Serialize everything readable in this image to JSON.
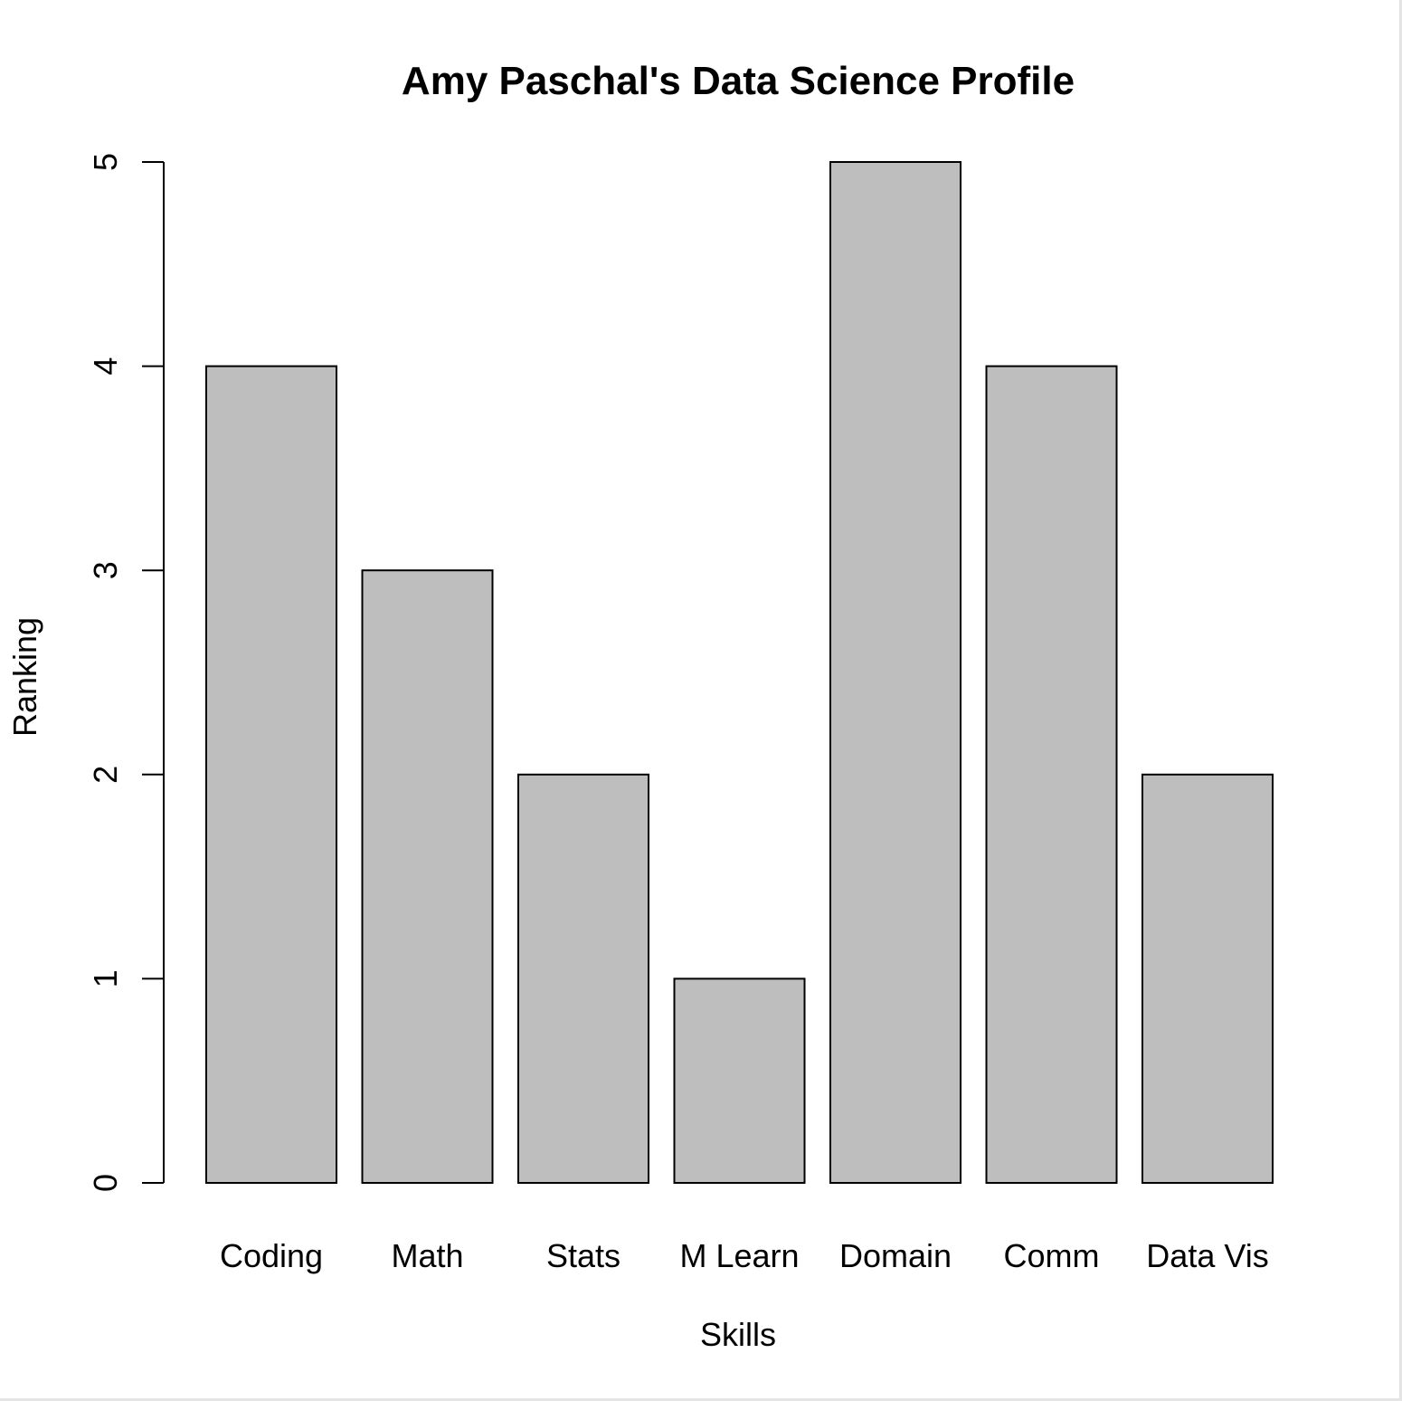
{
  "chart_data": {
    "type": "bar",
    "title": "Amy Paschal's Data Science Profile",
    "xlabel": "Skills",
    "ylabel": "Ranking",
    "categories": [
      "Coding",
      "Math",
      "Stats",
      "M Learn",
      "Domain",
      "Comm",
      "Data Vis"
    ],
    "values": [
      4,
      3,
      2,
      1,
      5,
      4,
      2
    ],
    "ylim": [
      0,
      5
    ],
    "yticks": [
      0,
      1,
      2,
      3,
      4,
      5
    ],
    "bar_color": "#bebebe",
    "grid": false,
    "legend": "none"
  }
}
